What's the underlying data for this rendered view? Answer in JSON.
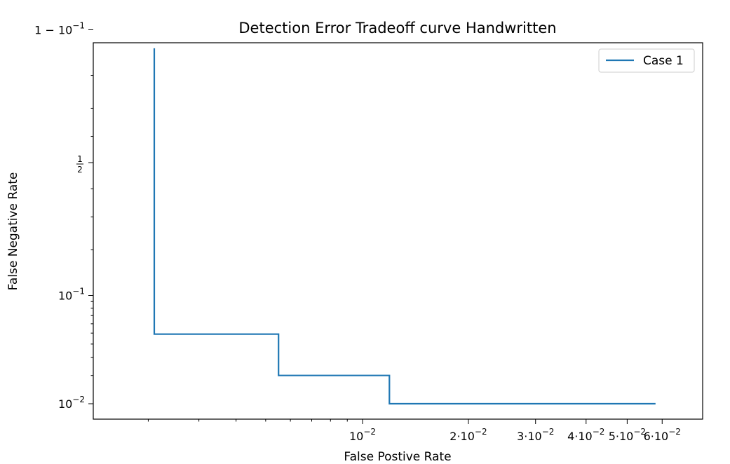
{
  "chart_data": {
    "type": "line",
    "title": "Detection Error Tradeoff curve Handwritten",
    "xlabel": "False Postive Rate",
    "ylabel": "False Negative Rate",
    "x_scale": "probit",
    "y_scale": "probit",
    "grid": false,
    "legend_position": "top-right",
    "x_tick_labels": [
      {
        "value": 0.01,
        "base": "10",
        "exp": "−2",
        "prefix": ""
      },
      {
        "value": 0.02,
        "base": "10",
        "exp": "−2",
        "prefix": "2·"
      },
      {
        "value": 0.03,
        "base": "10",
        "exp": "−2",
        "prefix": "3·"
      },
      {
        "value": 0.04,
        "base": "10",
        "exp": "−2",
        "prefix": "4·"
      },
      {
        "value": 0.05,
        "base": "10",
        "exp": "−2",
        "prefix": "5·"
      },
      {
        "value": 0.06,
        "base": "10",
        "exp": "−2",
        "prefix": "6·"
      }
    ],
    "y_tick_labels": [
      {
        "value": 0.9,
        "kind": "one-minus",
        "base": "10",
        "exp": "−1"
      },
      {
        "value": 0.5,
        "kind": "fraction",
        "num": "1",
        "den": "2"
      },
      {
        "value": 0.1,
        "kind": "power",
        "base": "10",
        "exp": "−1"
      },
      {
        "value": 0.01,
        "kind": "power",
        "base": "10",
        "exp": "−2"
      }
    ],
    "series": [
      {
        "name": "Case 1",
        "color": "#1f77b4",
        "x": [
          0.0021,
          0.0021,
          0.0055,
          0.0055,
          0.012,
          0.012,
          0.058
        ],
        "y": [
          0.865,
          0.049,
          0.049,
          0.02,
          0.02,
          0.01,
          0.01
        ]
      }
    ]
  }
}
